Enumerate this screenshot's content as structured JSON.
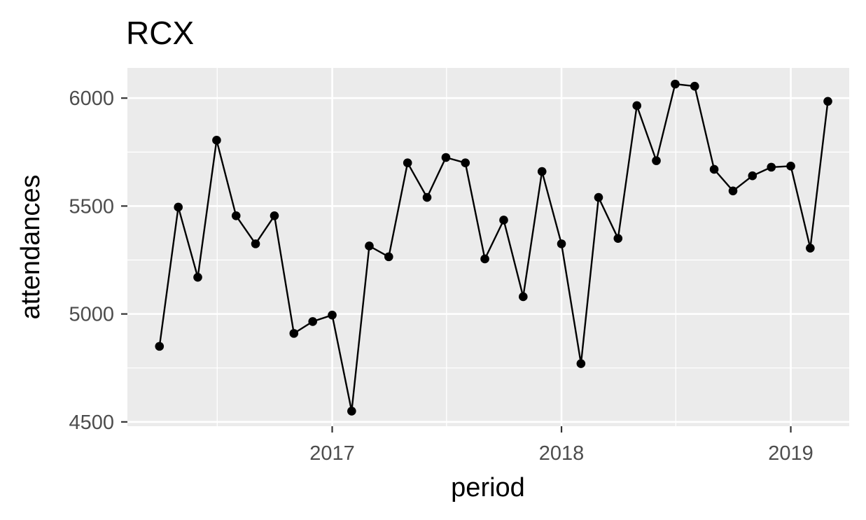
{
  "chart_data": {
    "type": "line",
    "title": "RCX",
    "xlabel": "period",
    "ylabel": "attendances",
    "xlim": [
      "2016-02-10",
      "2019-04-04"
    ],
    "ylim": [
      4480,
      6140
    ],
    "y_ticks": [
      4500,
      5000,
      5500,
      6000
    ],
    "x_ticks": [
      "2017-01-01",
      "2018-01-01",
      "2019-01-01"
    ],
    "x_tick_labels": [
      "2017",
      "2018",
      "2019"
    ],
    "grid": true,
    "legend": "none",
    "colors": {
      "panel": "#ebebeb",
      "grid": "#ffffff",
      "line": "#000000",
      "point": "#000000"
    },
    "series": [
      {
        "x": [
          "2016-04-01",
          "2016-05-01",
          "2016-06-01",
          "2016-07-01",
          "2016-08-01",
          "2016-09-01",
          "2016-10-01",
          "2016-11-01",
          "2016-12-01",
          "2017-01-01",
          "2017-02-01",
          "2017-03-01",
          "2017-04-01",
          "2017-05-01",
          "2017-06-01",
          "2017-07-01",
          "2017-08-01",
          "2017-09-01",
          "2017-10-01",
          "2017-11-01",
          "2017-12-01",
          "2018-01-01",
          "2018-02-01",
          "2018-03-01",
          "2018-04-01",
          "2018-05-01",
          "2018-06-01",
          "2018-07-01",
          "2018-08-01",
          "2018-09-01",
          "2018-10-01",
          "2018-11-01",
          "2018-12-01",
          "2019-01-01",
          "2019-02-01",
          "2019-03-01"
        ],
        "values": [
          4850,
          5495,
          5170,
          5805,
          5455,
          5325,
          5455,
          4910,
          4965,
          4995,
          4550,
          5315,
          5265,
          5700,
          5540,
          5725,
          5700,
          5255,
          5435,
          5080,
          5660,
          5325,
          4770,
          5540,
          5350,
          5965,
          5710,
          6065,
          6055,
          5670,
          5570,
          5640,
          5680,
          5685,
          5305,
          5985
        ]
      }
    ]
  }
}
